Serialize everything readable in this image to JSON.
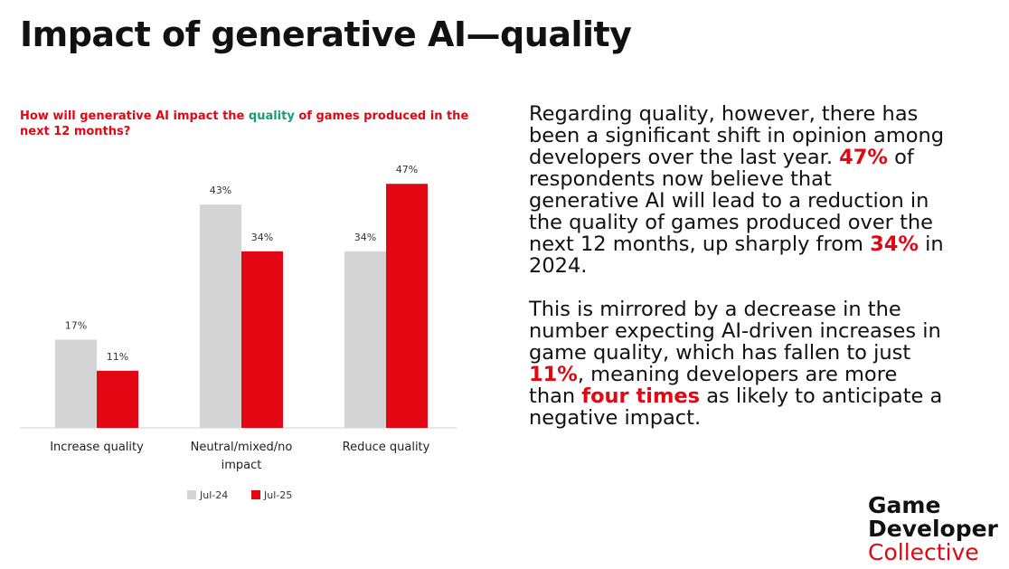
{
  "title": "Impact of generative AI—quality",
  "chart_data": {
    "type": "bar",
    "title": [
      "How will generative AI impact the ",
      "quality",
      " of games produced in the next 12 months?"
    ],
    "categories": [
      "Increase quality",
      "Neutral/mixed/no impact",
      "Reduce quality"
    ],
    "series": [
      {
        "name": "Jul-24",
        "color": "#d4d4d4",
        "values": [
          17,
          43,
          34
        ],
        "value_labels": [
          "17%",
          "43%",
          "34%"
        ]
      },
      {
        "name": "Jul-25",
        "color": "#e30613",
        "values": [
          11,
          34,
          47
        ],
        "value_labels": [
          "11%",
          "34%",
          "47%"
        ]
      }
    ],
    "ylim": [
      0,
      50
    ],
    "legend": "bottom"
  },
  "body": {
    "paragraphs": [
      [
        "Regarding quality, however, there has been a significant shift in opinion among developers over the last year. ",
        "47%",
        " of respondents now believe that generative AI will lead to a reduction in the quality of games produced over the next 12 months, up sharply from ",
        "34%",
        " in 2024."
      ],
      [
        "This is mirrored by a decrease in the number expecting AI-driven increases in game quality, which has fallen to just ",
        "11%",
        ", meaning developers are more than ",
        "four times",
        " as likely to anticipate a negative impact."
      ]
    ]
  },
  "logo": [
    "Game",
    "Developer",
    "Collective"
  ]
}
